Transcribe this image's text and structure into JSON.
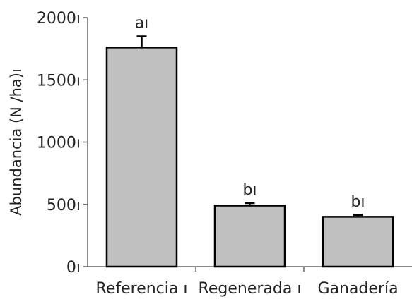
{
  "chart_data": {
    "type": "bar",
    "title": "",
    "xlabel": "",
    "ylabel": "Abundancia (N /ha)ı",
    "categories": [
      "Referencia ı",
      "Regenerada ı",
      "Ganadería"
    ],
    "values": [
      1760,
      490,
      400
    ],
    "errors": [
      90,
      20,
      15
    ],
    "significance_labels": [
      "aı",
      "bı",
      "bı"
    ],
    "ylim": [
      0,
      2000
    ],
    "yticks": [
      0,
      500,
      1000,
      1500,
      2000
    ],
    "ytick_labels": [
      "0ı",
      "500ı",
      "1000ı",
      "1500ı",
      "2000ı"
    ],
    "grid": false,
    "colors": {
      "bar_fill": "#c0c0c0",
      "bar_stroke": "#000000",
      "axis": "#666666",
      "text": "#222222"
    }
  }
}
